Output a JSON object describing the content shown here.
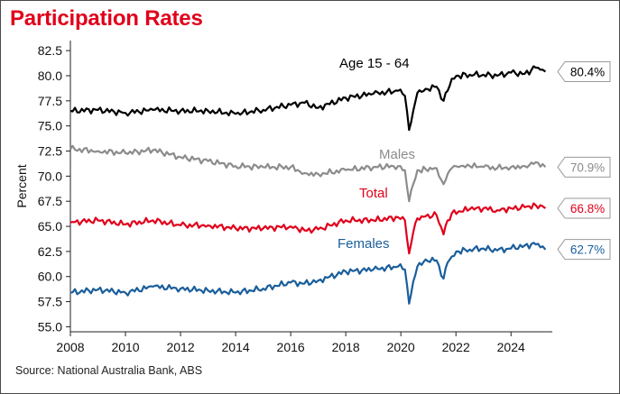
{
  "title": "Participation Rates",
  "source": "Source: National Australia Bank, ABS",
  "chart_data": {
    "type": "line",
    "title": "Participation Rates",
    "xlabel": "",
    "ylabel": "Percent",
    "xlim": [
      2008,
      2025.5
    ],
    "ylim": [
      54.5,
      83.5
    ],
    "yticks": [
      55.0,
      57.5,
      60.0,
      62.5,
      65.0,
      67.5,
      70.0,
      72.5,
      75.0,
      77.5,
      80.0,
      82.5
    ],
    "ytick_labels": [
      "55.0",
      "57.5",
      "60.0",
      "62.5",
      "65.0",
      "67.5",
      "70.0",
      "72.5",
      "75.0",
      "77.5",
      "80.0",
      "82.5"
    ],
    "xticks": [
      2008,
      2010,
      2012,
      2014,
      2016,
      2018,
      2020,
      2022,
      2024
    ],
    "xtick_labels": [
      "2008",
      "2010",
      "2012",
      "2014",
      "2016",
      "2018",
      "2020",
      "2022",
      "2024"
    ],
    "grid": false,
    "legend": "none",
    "series": [
      {
        "name": "Age 15 - 64",
        "color": "#000000",
        "end_label": "80.4%",
        "x": [
          2008.0,
          2009.0,
          2010.0,
          2011.0,
          2012.0,
          2013.0,
          2014.0,
          2015.0,
          2016.0,
          2016.5,
          2017.0,
          2018.0,
          2019.0,
          2019.9,
          2020.15,
          2020.3,
          2020.45,
          2020.6,
          2020.9,
          2021.3,
          2021.55,
          2021.7,
          2021.85,
          2022.1,
          2022.5,
          2023.0,
          2023.5,
          2024.0,
          2024.5,
          2024.9,
          2025.15,
          2025.25
        ],
        "y": [
          76.5,
          76.6,
          76.3,
          76.6,
          76.5,
          76.5,
          76.2,
          76.6,
          77.1,
          77.3,
          76.8,
          77.8,
          78.2,
          78.5,
          78.0,
          74.6,
          76.5,
          78.3,
          78.7,
          78.9,
          77.5,
          78.5,
          79.7,
          80.0,
          80.1,
          80.1,
          80.0,
          80.3,
          80.2,
          80.8,
          80.6,
          80.4
        ]
      },
      {
        "name": "Males",
        "color": "#8c8c8c",
        "end_label": "70.9%",
        "x": [
          2008.0,
          2009.0,
          2010.0,
          2011.0,
          2012.0,
          2013.0,
          2014.0,
          2015.0,
          2016.0,
          2016.5,
          2017.0,
          2018.0,
          2019.0,
          2019.9,
          2020.15,
          2020.3,
          2020.45,
          2020.6,
          2020.9,
          2021.3,
          2021.55,
          2021.7,
          2021.85,
          2022.1,
          2022.5,
          2023.0,
          2023.5,
          2024.0,
          2024.5,
          2024.9,
          2025.15,
          2025.25
        ],
        "y": [
          72.7,
          72.5,
          72.3,
          72.6,
          71.9,
          71.5,
          71.0,
          70.9,
          70.9,
          70.3,
          70.2,
          70.6,
          70.9,
          71.0,
          70.6,
          67.5,
          69.2,
          70.6,
          70.7,
          70.8,
          69.2,
          70.2,
          70.8,
          70.9,
          71.0,
          70.9,
          70.8,
          70.9,
          71.0,
          71.4,
          71.2,
          70.9
        ]
      },
      {
        "name": "Total",
        "color": "#e0001b",
        "end_label": "66.8%",
        "x": [
          2008.0,
          2009.0,
          2010.0,
          2011.0,
          2012.0,
          2013.0,
          2014.0,
          2015.0,
          2016.0,
          2016.5,
          2017.0,
          2018.0,
          2019.0,
          2019.9,
          2020.15,
          2020.3,
          2020.45,
          2020.6,
          2020.9,
          2021.3,
          2021.55,
          2021.7,
          2021.85,
          2022.1,
          2022.5,
          2023.0,
          2023.5,
          2024.0,
          2024.5,
          2024.9,
          2025.15,
          2025.25
        ],
        "y": [
          65.4,
          65.6,
          65.2,
          65.6,
          65.1,
          65.1,
          64.8,
          64.8,
          65.0,
          64.6,
          64.7,
          65.6,
          65.6,
          65.9,
          65.6,
          62.3,
          64.4,
          65.8,
          66.0,
          66.1,
          64.2,
          65.6,
          66.3,
          66.5,
          66.7,
          66.8,
          66.6,
          66.8,
          66.9,
          67.1,
          67.0,
          66.8
        ]
      },
      {
        "name": "Females",
        "color": "#1a5e9b",
        "end_label": "62.7%",
        "x": [
          2008.0,
          2009.0,
          2010.0,
          2011.0,
          2012.0,
          2013.0,
          2014.0,
          2015.0,
          2016.0,
          2016.5,
          2017.0,
          2018.0,
          2019.0,
          2019.9,
          2020.15,
          2020.3,
          2020.45,
          2020.6,
          2020.9,
          2021.3,
          2021.55,
          2021.7,
          2021.85,
          2022.1,
          2022.5,
          2023.0,
          2023.5,
          2024.0,
          2024.5,
          2024.9,
          2025.15,
          2025.25
        ],
        "y": [
          58.4,
          58.7,
          58.4,
          59.0,
          58.8,
          58.6,
          58.4,
          58.8,
          59.4,
          59.3,
          59.6,
          60.5,
          60.7,
          61.0,
          60.7,
          57.3,
          59.5,
          61.0,
          61.7,
          61.6,
          59.8,
          61.4,
          62.0,
          62.5,
          62.7,
          62.8,
          62.6,
          62.8,
          63.1,
          63.2,
          63.0,
          62.7
        ]
      }
    ]
  }
}
